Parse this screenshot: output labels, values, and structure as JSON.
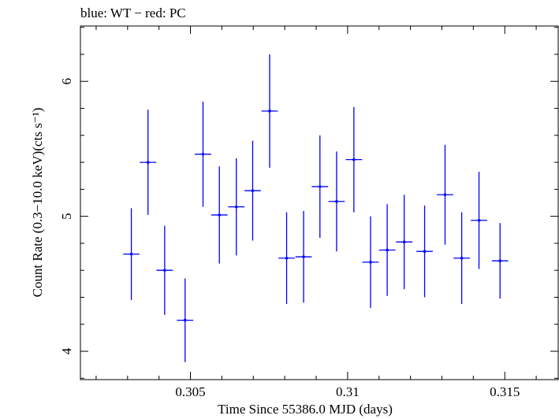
{
  "chart_data": {
    "type": "scatter",
    "title": "blue: WT − red: PC",
    "xlabel": "Time Since 55386.0 MJD (days)",
    "ylabel": "Count Rate (0.3−10.0 keV)(cts s⁻¹)",
    "xlim": [
      0.3015,
      0.3167
    ],
    "ylim": [
      3.79,
      6.41
    ],
    "x_ticks": [
      {
        "value": 0.305,
        "label": "0.305"
      },
      {
        "value": 0.31,
        "label": "0.31"
      },
      {
        "value": 0.315,
        "label": "0.315"
      }
    ],
    "y_ticks": [
      {
        "value": 4,
        "label": "4"
      },
      {
        "value": 5,
        "label": "5"
      },
      {
        "value": 6,
        "label": "6"
      }
    ],
    "grid": false,
    "series": [
      {
        "name": "WT",
        "color": "#0000ff",
        "points": [
          {
            "x": 0.30312,
            "xerr": 0.00026,
            "y": 4.72,
            "yerr": 0.34
          },
          {
            "x": 0.30365,
            "xerr": 0.00026,
            "y": 5.4,
            "yerr": 0.39
          },
          {
            "x": 0.30418,
            "xerr": 0.00026,
            "y": 4.6,
            "yerr": 0.33
          },
          {
            "x": 0.30483,
            "xerr": 0.00026,
            "y": 4.23,
            "yerr": 0.31
          },
          {
            "x": 0.3054,
            "xerr": 0.00026,
            "y": 5.46,
            "yerr": 0.39
          },
          {
            "x": 0.30592,
            "xerr": 0.00026,
            "y": 5.01,
            "yerr": 0.36
          },
          {
            "x": 0.30646,
            "xerr": 0.00026,
            "y": 5.07,
            "yerr": 0.36
          },
          {
            "x": 0.30698,
            "xerr": 0.00026,
            "y": 5.19,
            "yerr": 0.37
          },
          {
            "x": 0.30752,
            "xerr": 0.00026,
            "y": 5.78,
            "yerr": 0.42
          },
          {
            "x": 0.30806,
            "xerr": 0.00026,
            "y": 4.69,
            "yerr": 0.34
          },
          {
            "x": 0.3086,
            "xerr": 0.00026,
            "y": 4.7,
            "yerr": 0.34
          },
          {
            "x": 0.30912,
            "xerr": 0.00026,
            "y": 5.22,
            "yerr": 0.38
          },
          {
            "x": 0.30965,
            "xerr": 0.00026,
            "y": 5.11,
            "yerr": 0.37
          },
          {
            "x": 0.3102,
            "xerr": 0.00026,
            "y": 5.42,
            "yerr": 0.39
          },
          {
            "x": 0.31073,
            "xerr": 0.00026,
            "y": 4.66,
            "yerr": 0.34
          },
          {
            "x": 0.31126,
            "xerr": 0.00026,
            "y": 4.75,
            "yerr": 0.34
          },
          {
            "x": 0.3118,
            "xerr": 0.00026,
            "y": 4.81,
            "yerr": 0.35
          },
          {
            "x": 0.31245,
            "xerr": 0.00026,
            "y": 4.74,
            "yerr": 0.34
          },
          {
            "x": 0.3131,
            "xerr": 0.00026,
            "y": 5.16,
            "yerr": 0.37
          },
          {
            "x": 0.31363,
            "xerr": 0.00026,
            "y": 4.69,
            "yerr": 0.34
          },
          {
            "x": 0.31418,
            "xerr": 0.00026,
            "y": 4.97,
            "yerr": 0.36
          },
          {
            "x": 0.31485,
            "xerr": 0.00026,
            "y": 4.67,
            "yerr": 0.28
          }
        ]
      }
    ]
  }
}
